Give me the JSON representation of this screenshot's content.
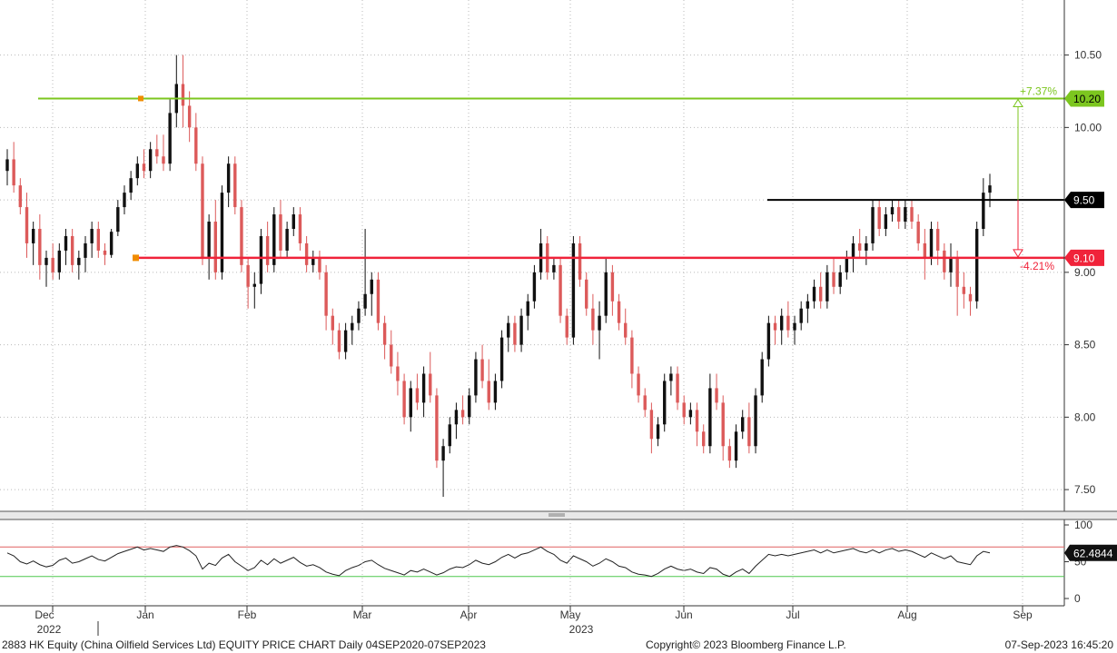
{
  "chart_data": {
    "type": "candlestick",
    "ticker": "2883 HK Equity",
    "ylim": [
      7.35,
      10.88
    ],
    "y_ticks": [
      "10.50",
      "10.00",
      "9.50",
      "9.00",
      "8.50",
      "8.00",
      "7.50"
    ],
    "x_month_labels": [
      "Dec",
      "Jan",
      "Feb",
      "Mar",
      "Apr",
      "May",
      "Jun",
      "Jul",
      "Aug",
      "Sep"
    ],
    "x_year_labels": [
      "2022",
      "2023"
    ],
    "ohlc": [
      [
        9.7,
        9.85,
        9.6,
        9.78
      ],
      [
        9.78,
        9.9,
        9.55,
        9.6
      ],
      [
        9.6,
        9.65,
        9.4,
        9.45
      ],
      [
        9.45,
        9.55,
        9.1,
        9.2
      ],
      [
        9.2,
        9.35,
        9.05,
        9.3
      ],
      [
        9.3,
        9.4,
        8.95,
        9.05
      ],
      [
        9.05,
        9.15,
        8.9,
        9.1
      ],
      [
        9.1,
        9.2,
        8.95,
        9.0
      ],
      [
        9.0,
        9.2,
        8.95,
        9.15
      ],
      [
        9.15,
        9.3,
        9.05,
        9.25
      ],
      [
        9.25,
        9.3,
        9.0,
        9.05
      ],
      [
        9.05,
        9.15,
        8.95,
        9.1
      ],
      [
        9.1,
        9.25,
        9.0,
        9.2
      ],
      [
        9.2,
        9.35,
        9.1,
        9.3
      ],
      [
        9.3,
        9.35,
        9.1,
        9.15
      ],
      [
        9.15,
        9.2,
        9.05,
        9.12
      ],
      [
        9.12,
        9.3,
        9.1,
        9.28
      ],
      [
        9.28,
        9.5,
        9.25,
        9.45
      ],
      [
        9.45,
        9.6,
        9.4,
        9.55
      ],
      [
        9.55,
        9.7,
        9.5,
        9.65
      ],
      [
        9.65,
        9.8,
        9.6,
        9.75
      ],
      [
        9.75,
        9.85,
        9.65,
        9.7
      ],
      [
        9.7,
        9.9,
        9.65,
        9.85
      ],
      [
        9.85,
        9.95,
        9.75,
        9.8
      ],
      [
        9.8,
        9.95,
        9.7,
        9.75
      ],
      [
        9.75,
        10.2,
        9.7,
        10.1
      ],
      [
        10.1,
        10.5,
        10.0,
        10.3
      ],
      [
        10.3,
        10.5,
        10.0,
        10.15
      ],
      [
        10.15,
        10.25,
        9.9,
        10.0
      ],
      [
        10.0,
        10.1,
        9.7,
        9.75
      ],
      [
        9.75,
        9.8,
        9.05,
        9.1
      ],
      [
        9.1,
        9.4,
        8.95,
        9.35
      ],
      [
        9.35,
        9.5,
        8.95,
        9.0
      ],
      [
        9.0,
        9.6,
        8.95,
        9.55
      ],
      [
        9.55,
        9.8,
        9.45,
        9.75
      ],
      [
        9.75,
        9.8,
        9.4,
        9.45
      ],
      [
        9.45,
        9.5,
        9.0,
        9.05
      ],
      [
        9.05,
        9.1,
        8.75,
        8.9
      ],
      [
        8.9,
        9.0,
        8.75,
        8.92
      ],
      [
        8.92,
        9.3,
        8.85,
        9.25
      ],
      [
        9.25,
        9.35,
        9.0,
        9.05
      ],
      [
        9.05,
        9.45,
        9.0,
        9.4
      ],
      [
        9.4,
        9.5,
        9.1,
        9.15
      ],
      [
        9.15,
        9.35,
        9.1,
        9.3
      ],
      [
        9.3,
        9.45,
        9.25,
        9.4
      ],
      [
        9.4,
        9.45,
        9.15,
        9.2
      ],
      [
        9.2,
        9.25,
        9.0,
        9.05
      ],
      [
        9.05,
        9.15,
        9.0,
        9.1
      ],
      [
        9.1,
        9.15,
        8.95,
        9.0
      ],
      [
        9.0,
        9.05,
        8.6,
        8.7
      ],
      [
        8.7,
        8.75,
        8.5,
        8.6
      ],
      [
        8.6,
        8.65,
        8.4,
        8.45
      ],
      [
        8.45,
        8.65,
        8.4,
        8.6
      ],
      [
        8.6,
        8.7,
        8.5,
        8.65
      ],
      [
        8.65,
        8.8,
        8.6,
        8.75
      ],
      [
        8.75,
        9.3,
        8.7,
        8.85
      ],
      [
        8.85,
        9.0,
        8.7,
        8.95
      ],
      [
        8.95,
        9.0,
        8.6,
        8.65
      ],
      [
        8.65,
        8.7,
        8.4,
        8.5
      ],
      [
        8.5,
        8.6,
        8.3,
        8.35
      ],
      [
        8.35,
        8.45,
        8.15,
        8.25
      ],
      [
        8.25,
        8.3,
        7.95,
        8.0
      ],
      [
        8.0,
        8.25,
        7.9,
        8.2
      ],
      [
        8.2,
        8.3,
        8.05,
        8.1
      ],
      [
        8.1,
        8.35,
        8.0,
        8.3
      ],
      [
        8.3,
        8.45,
        8.1,
        8.15
      ],
      [
        8.15,
        8.2,
        7.65,
        7.7
      ],
      [
        7.7,
        7.85,
        7.45,
        7.8
      ],
      [
        7.8,
        8.0,
        7.75,
        7.95
      ],
      [
        7.95,
        8.1,
        7.85,
        8.05
      ],
      [
        8.05,
        8.15,
        7.95,
        8.0
      ],
      [
        8.0,
        8.2,
        7.95,
        8.15
      ],
      [
        8.15,
        8.45,
        8.1,
        8.4
      ],
      [
        8.4,
        8.5,
        8.2,
        8.25
      ],
      [
        8.25,
        8.4,
        8.05,
        8.1
      ],
      [
        8.1,
        8.3,
        8.05,
        8.25
      ],
      [
        8.25,
        8.6,
        8.2,
        8.55
      ],
      [
        8.55,
        8.7,
        8.45,
        8.65
      ],
      [
        8.65,
        8.7,
        8.45,
        8.5
      ],
      [
        8.5,
        8.75,
        8.45,
        8.7
      ],
      [
        8.7,
        8.85,
        8.6,
        8.8
      ],
      [
        8.8,
        9.05,
        8.75,
        9.0
      ],
      [
        9.0,
        9.3,
        8.95,
        9.2
      ],
      [
        9.2,
        9.25,
        8.95,
        9.0
      ],
      [
        9.0,
        9.1,
        8.95,
        9.05
      ],
      [
        9.05,
        9.1,
        8.65,
        8.7
      ],
      [
        8.7,
        8.75,
        8.5,
        8.55
      ],
      [
        8.55,
        9.25,
        8.5,
        9.2
      ],
      [
        9.2,
        9.25,
        8.9,
        8.95
      ],
      [
        8.95,
        9.0,
        8.7,
        8.75
      ],
      [
        8.75,
        8.85,
        8.5,
        8.6
      ],
      [
        8.6,
        8.8,
        8.4,
        8.7
      ],
      [
        8.7,
        9.1,
        8.65,
        9.0
      ],
      [
        9.0,
        9.05,
        8.7,
        8.8
      ],
      [
        8.8,
        8.85,
        8.6,
        8.65
      ],
      [
        8.65,
        8.75,
        8.5,
        8.55
      ],
      [
        8.55,
        8.6,
        8.2,
        8.3
      ],
      [
        8.3,
        8.35,
        8.1,
        8.15
      ],
      [
        8.15,
        8.2,
        8.0,
        8.05
      ],
      [
        8.05,
        8.1,
        7.75,
        7.85
      ],
      [
        7.85,
        8.0,
        7.8,
        7.95
      ],
      [
        7.95,
        8.3,
        7.9,
        8.25
      ],
      [
        8.25,
        8.35,
        8.15,
        8.3
      ],
      [
        8.3,
        8.35,
        8.05,
        8.1
      ],
      [
        8.1,
        8.15,
        7.95,
        8.0
      ],
      [
        8.0,
        8.1,
        7.95,
        8.05
      ],
      [
        8.05,
        8.1,
        7.8,
        7.9
      ],
      [
        7.9,
        7.95,
        7.75,
        7.8
      ],
      [
        7.8,
        8.3,
        7.75,
        8.2
      ],
      [
        8.2,
        8.3,
        8.05,
        8.1
      ],
      [
        8.1,
        8.15,
        7.7,
        7.8
      ],
      [
        7.8,
        7.85,
        7.65,
        7.7
      ],
      [
        7.7,
        7.95,
        7.65,
        7.9
      ],
      [
        7.9,
        8.05,
        7.85,
        8.0
      ],
      [
        8.0,
        8.1,
        7.75,
        7.8
      ],
      [
        7.8,
        8.2,
        7.75,
        8.15
      ],
      [
        8.15,
        8.45,
        8.1,
        8.4
      ],
      [
        8.4,
        8.7,
        8.35,
        8.65
      ],
      [
        8.65,
        8.7,
        8.5,
        8.6
      ],
      [
        8.6,
        8.75,
        8.5,
        8.7
      ],
      [
        8.7,
        8.8,
        8.55,
        8.6
      ],
      [
        8.6,
        8.7,
        8.5,
        8.65
      ],
      [
        8.65,
        8.8,
        8.6,
        8.75
      ],
      [
        8.75,
        8.85,
        8.65,
        8.8
      ],
      [
        8.8,
        8.95,
        8.75,
        8.9
      ],
      [
        8.9,
        9.0,
        8.75,
        8.8
      ],
      [
        8.8,
        9.05,
        8.75,
        9.0
      ],
      [
        9.0,
        9.1,
        8.85,
        8.9
      ],
      [
        8.9,
        9.05,
        8.85,
        9.0
      ],
      [
        9.0,
        9.15,
        8.95,
        9.1
      ],
      [
        9.1,
        9.25,
        9.0,
        9.2
      ],
      [
        9.2,
        9.3,
        9.1,
        9.15
      ],
      [
        9.15,
        9.25,
        9.05,
        9.2
      ],
      [
        9.2,
        9.5,
        9.15,
        9.45
      ],
      [
        9.45,
        9.5,
        9.25,
        9.3
      ],
      [
        9.3,
        9.45,
        9.25,
        9.4
      ],
      [
        9.4,
        9.5,
        9.35,
        9.45
      ],
      [
        9.45,
        9.5,
        9.3,
        9.35
      ],
      [
        9.35,
        9.5,
        9.3,
        9.45
      ],
      [
        9.45,
        9.5,
        9.3,
        9.35
      ],
      [
        9.35,
        9.4,
        9.15,
        9.2
      ],
      [
        9.2,
        9.3,
        8.95,
        9.1
      ],
      [
        9.1,
        9.35,
        9.05,
        9.3
      ],
      [
        9.3,
        9.35,
        9.05,
        9.15
      ],
      [
        9.15,
        9.2,
        8.95,
        9.0
      ],
      [
        9.0,
        9.2,
        8.9,
        9.1
      ],
      [
        9.1,
        9.15,
        8.7,
        8.9
      ],
      [
        8.9,
        9.0,
        8.75,
        8.85
      ],
      [
        8.85,
        8.9,
        8.7,
        8.8
      ],
      [
        8.8,
        9.35,
        8.75,
        9.3
      ],
      [
        9.3,
        9.65,
        9.25,
        9.55
      ],
      [
        9.55,
        9.68,
        9.45,
        9.6
      ]
    ],
    "rsi": {
      "ylim": [
        0,
        100
      ],
      "y_ticks": [
        "100",
        "50",
        "0"
      ],
      "overbought": 70,
      "oversold": 30,
      "last_value": "62.4844",
      "values": [
        62,
        58,
        50,
        47,
        51,
        46,
        43,
        45,
        52,
        55,
        48,
        50,
        54,
        58,
        53,
        51,
        56,
        61,
        64,
        67,
        70,
        66,
        68,
        66,
        64,
        70,
        72,
        70,
        65,
        58,
        40,
        48,
        45,
        55,
        60,
        50,
        44,
        38,
        42,
        52,
        46,
        54,
        48,
        52,
        56,
        49,
        44,
        46,
        42,
        36,
        33,
        31,
        38,
        42,
        45,
        50,
        52,
        46,
        41,
        38,
        35,
        32,
        38,
        36,
        40,
        36,
        32,
        35,
        40,
        43,
        42,
        46,
        52,
        48,
        46,
        50,
        56,
        60,
        55,
        60,
        62,
        66,
        70,
        64,
        60,
        52,
        48,
        58,
        54,
        50,
        44,
        48,
        54,
        50,
        44,
        42,
        36,
        33,
        32,
        30,
        34,
        40,
        44,
        40,
        38,
        40,
        36,
        34,
        42,
        40,
        33,
        30,
        36,
        40,
        34,
        44,
        52,
        60,
        58,
        60,
        58,
        60,
        62,
        64,
        66,
        62,
        66,
        62,
        64,
        66,
        68,
        64,
        62,
        66,
        62,
        66,
        68,
        64,
        66,
        64,
        60,
        56,
        62,
        58,
        54,
        58,
        50,
        48,
        46,
        58,
        64,
        62
      ]
    }
  },
  "levels": {
    "upper": {
      "value": "10.20",
      "label": "10.20",
      "pct": "+7.37%",
      "color": "#7cc61f"
    },
    "mid": {
      "value": "9.50",
      "label": "9.50",
      "color": "#000000"
    },
    "lower": {
      "value": "9.10",
      "label": "9.10",
      "pct": "-4.21%",
      "color": "#f0233a"
    }
  },
  "colors": {
    "up": "#111111",
    "down": "#dc5a5a",
    "rsi_line": "#222222",
    "rsi_overbought": "#e06060",
    "rsi_oversold": "#4ec84e",
    "grid": "#b9b9b9",
    "marker": "#f08c00"
  },
  "footer": {
    "left": "2883 HK Equity (China Oilfield Services Ltd) EQUITY PRICE CHART  Daily 04SEP2020-07SEP2023",
    "center": "Copyright© 2023 Bloomberg Finance L.P.",
    "right": "07-Sep-2023 16:45:20"
  }
}
